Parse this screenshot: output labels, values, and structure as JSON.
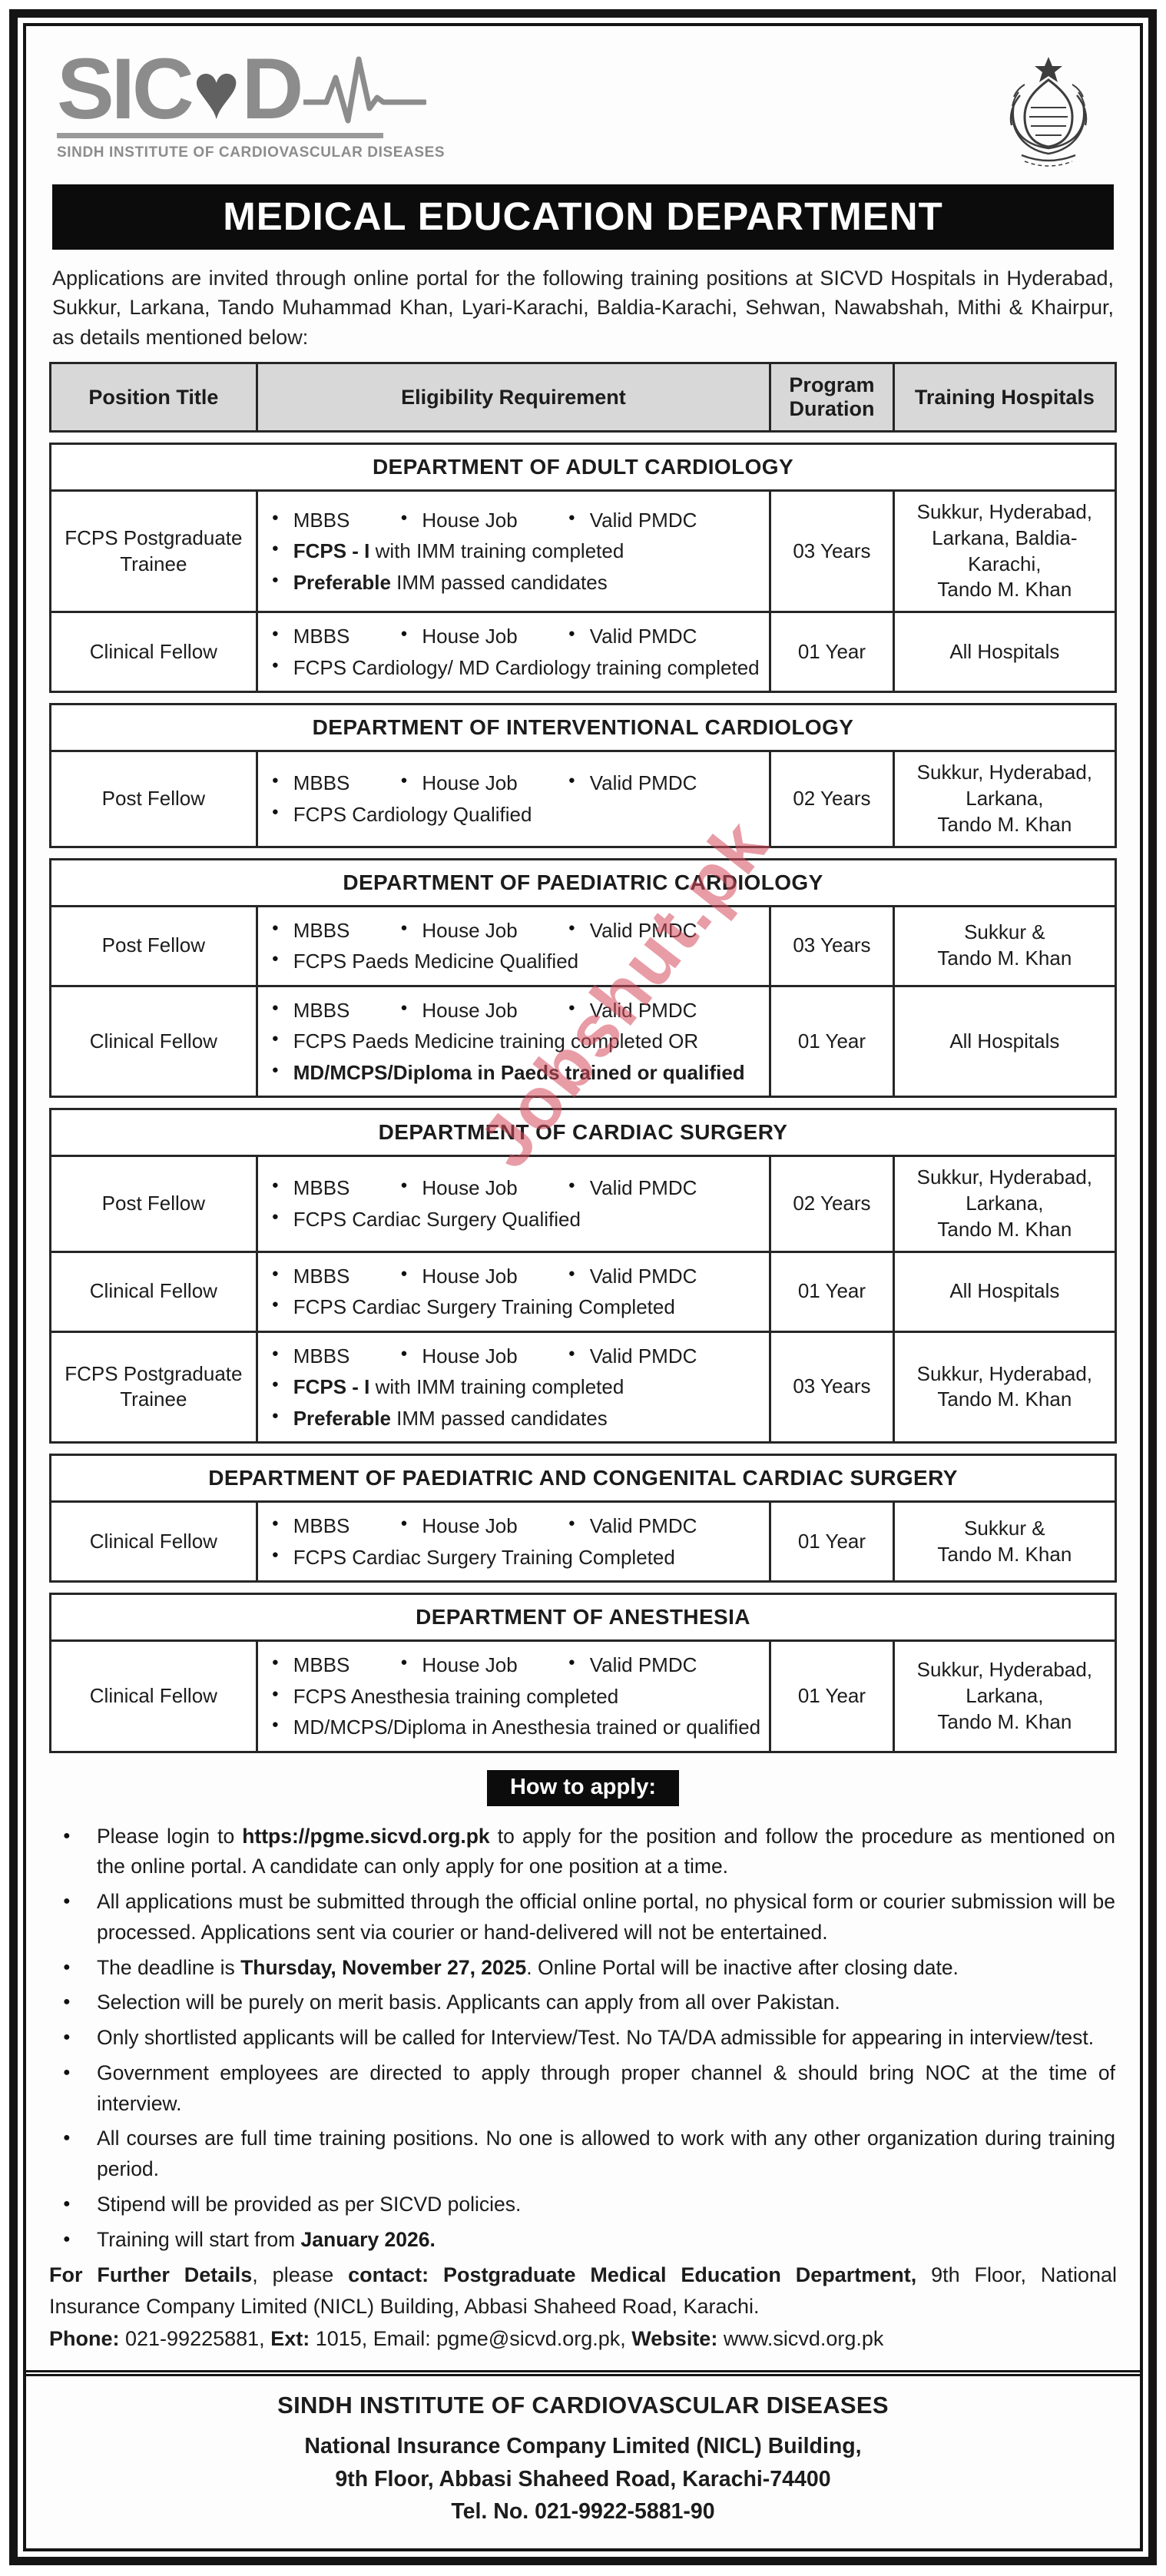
{
  "colors": {
    "banner_bg": "#0c0c0c",
    "table_header_bg": "#d8d8d8",
    "logo_gray": "#8c8c8c",
    "watermark_red": "#d64a5c"
  },
  "logo": {
    "brand_pre": "SIC",
    "brand_post": "D",
    "heart": "♥",
    "tagline": "SINDH INSTITUTE OF CARDIOVASCULAR DISEASES"
  },
  "banner": {
    "title": "MEDICAL EDUCATION DEPARTMENT"
  },
  "intro": "Applications are invited through online portal for the following training positions at SICVD Hospitals in Hyderabad, Sukkur, Larkana, Tando Muhammad Khan, Lyari-Karachi, Baldia-Karachi, Sehwan, Nawabshah, Mithi & Khairpur, as details mentioned below:",
  "table": {
    "headers": [
      "Position Title",
      "Eligibility Requirement",
      "Program Duration",
      "Training Hospitals"
    ],
    "sections": [
      {
        "title": "DEPARTMENT OF ADULT CARDIOLOGY",
        "rows": [
          {
            "position": "FCPS Postgraduate Trainee",
            "eligibility": [
              [
                [
                  {
                    "t": "MBBS"
                  }
                ],
                [
                  {
                    "t": "House Job"
                  }
                ],
                [
                  {
                    "t": "Valid PMDC"
                  }
                ]
              ],
              [
                [
                  {
                    "t": "FCPS - I ",
                    "b": true
                  },
                  {
                    "t": "with IMM training completed"
                  }
                ]
              ],
              [
                [
                  {
                    "t": "Preferable ",
                    "b": true
                  },
                  {
                    "t": "IMM passed candidates"
                  }
                ]
              ]
            ],
            "duration": "03 Years",
            "hospitals": "Sukkur, Hyderabad,\nLarkana, Baldia-Karachi,\nTando M. Khan"
          },
          {
            "position": "Clinical Fellow",
            "eligibility": [
              [
                [
                  {
                    "t": "MBBS"
                  }
                ],
                [
                  {
                    "t": "House Job"
                  }
                ],
                [
                  {
                    "t": "Valid PMDC"
                  }
                ]
              ],
              [
                [
                  {
                    "t": "FCPS Cardiology/ MD Cardiology training completed"
                  }
                ]
              ]
            ],
            "duration": "01 Year",
            "hospitals": "All Hospitals"
          }
        ]
      },
      {
        "title": "DEPARTMENT OF INTERVENTIONAL CARDIOLOGY",
        "rows": [
          {
            "position": "Post Fellow",
            "eligibility": [
              [
                [
                  {
                    "t": "MBBS"
                  }
                ],
                [
                  {
                    "t": "House Job"
                  }
                ],
                [
                  {
                    "t": "Valid PMDC"
                  }
                ]
              ],
              [
                [
                  {
                    "t": "FCPS Cardiology Qualified"
                  }
                ]
              ]
            ],
            "duration": "02 Years",
            "hospitals": "Sukkur, Hyderabad,\nLarkana,\nTando M. Khan"
          }
        ]
      },
      {
        "title": "DEPARTMENT OF PAEDIATRIC CARDIOLOGY",
        "rows": [
          {
            "position": "Post Fellow",
            "eligibility": [
              [
                [
                  {
                    "t": "MBBS"
                  }
                ],
                [
                  {
                    "t": "House Job"
                  }
                ],
                [
                  {
                    "t": "Valid PMDC"
                  }
                ]
              ],
              [
                [
                  {
                    "t": "FCPS Paeds Medicine Qualified"
                  }
                ]
              ]
            ],
            "duration": "03 Years",
            "hospitals": "Sukkur &\nTando M. Khan"
          },
          {
            "position": "Clinical Fellow",
            "eligibility": [
              [
                [
                  {
                    "t": "MBBS"
                  }
                ],
                [
                  {
                    "t": "House Job"
                  }
                ],
                [
                  {
                    "t": "Valid PMDC"
                  }
                ]
              ],
              [
                [
                  {
                    "t": "FCPS Paeds Medicine training completed OR"
                  }
                ]
              ],
              [
                [
                  {
                    "t": "MD/MCPS/Diploma in Paeds trained or qualified",
                    "b": true
                  }
                ]
              ]
            ],
            "duration": "01 Year",
            "hospitals": "All Hospitals"
          }
        ]
      },
      {
        "title": "DEPARTMENT OF CARDIAC SURGERY",
        "rows": [
          {
            "position": "Post Fellow",
            "eligibility": [
              [
                [
                  {
                    "t": "MBBS"
                  }
                ],
                [
                  {
                    "t": "House Job"
                  }
                ],
                [
                  {
                    "t": "Valid PMDC"
                  }
                ]
              ],
              [
                [
                  {
                    "t": "FCPS Cardiac Surgery Qualified"
                  }
                ]
              ]
            ],
            "duration": "02 Years",
            "hospitals": "Sukkur, Hyderabad,\nLarkana,\nTando M. Khan"
          },
          {
            "position": "Clinical Fellow",
            "eligibility": [
              [
                [
                  {
                    "t": "MBBS"
                  }
                ],
                [
                  {
                    "t": "House Job"
                  }
                ],
                [
                  {
                    "t": "Valid PMDC"
                  }
                ]
              ],
              [
                [
                  {
                    "t": "FCPS Cardiac Surgery Training Completed"
                  }
                ]
              ]
            ],
            "duration": "01 Year",
            "hospitals": "All Hospitals"
          },
          {
            "position": "FCPS Postgraduate Trainee",
            "eligibility": [
              [
                [
                  {
                    "t": "MBBS"
                  }
                ],
                [
                  {
                    "t": "House Job"
                  }
                ],
                [
                  {
                    "t": "Valid PMDC"
                  }
                ]
              ],
              [
                [
                  {
                    "t": "FCPS - I ",
                    "b": true
                  },
                  {
                    "t": "with IMM training completed"
                  }
                ]
              ],
              [
                [
                  {
                    "t": "Preferable ",
                    "b": true
                  },
                  {
                    "t": "IMM passed candidates"
                  }
                ]
              ]
            ],
            "duration": "03 Years",
            "hospitals": "Sukkur, Hyderabad,\nTando M. Khan"
          }
        ]
      },
      {
        "title": "DEPARTMENT OF PAEDIATRIC AND CONGENITAL CARDIAC SURGERY",
        "rows": [
          {
            "position": "Clinical Fellow",
            "eligibility": [
              [
                [
                  {
                    "t": "MBBS"
                  }
                ],
                [
                  {
                    "t": "House Job"
                  }
                ],
                [
                  {
                    "t": "Valid PMDC"
                  }
                ]
              ],
              [
                [
                  {
                    "t": "FCPS Cardiac Surgery Training Completed"
                  }
                ]
              ]
            ],
            "duration": "01 Year",
            "hospitals": "Sukkur &\nTando M. Khan"
          }
        ]
      },
      {
        "title": "DEPARTMENT OF ANESTHESIA",
        "rows": [
          {
            "position": "Clinical Fellow",
            "eligibility": [
              [
                [
                  {
                    "t": "MBBS"
                  }
                ],
                [
                  {
                    "t": "House Job"
                  }
                ],
                [
                  {
                    "t": "Valid PMDC"
                  }
                ]
              ],
              [
                [
                  {
                    "t": "FCPS Anesthesia training completed"
                  }
                ]
              ],
              [
                [
                  {
                    "t": "MD/MCPS/Diploma in Anesthesia trained or qualified"
                  }
                ]
              ]
            ],
            "duration": "01 Year",
            "hospitals": "Sukkur, Hyderabad,\nLarkana,\nTando M. Khan"
          }
        ]
      }
    ]
  },
  "how_to_apply": {
    "label": "How to apply:",
    "bullets": [
      [
        {
          "t": "Please login to "
        },
        {
          "t": "https://pgme.sicvd.org.pk",
          "b": true
        },
        {
          "t": " to apply for the position and follow the procedure as mentioned on the online portal. A candidate can only apply for one position at a time."
        }
      ],
      [
        {
          "t": "All applications must be submitted through the official online portal, no physical form or courier submission will be processed. Applications sent via courier or hand-delivered will not be entertained."
        }
      ],
      [
        {
          "t": "The deadline is "
        },
        {
          "t": "Thursday, November 27, 2025",
          "b": true
        },
        {
          "t": ". Online Portal will be inactive after closing date."
        }
      ],
      [
        {
          "t": "Selection will be purely on merit basis. Applicants can apply from all over Pakistan."
        }
      ],
      [
        {
          "t": "Only shortlisted applicants will be called for Interview/Test. No TA/DA admissible for appearing in interview/test."
        }
      ],
      [
        {
          "t": "Government employees are directed to apply through proper channel & should bring NOC at the time of interview."
        }
      ],
      [
        {
          "t": "All courses are full time training positions. No one is allowed to work with any other organization during training period."
        }
      ],
      [
        {
          "t": "Stipend will be provided as per SICVD policies."
        }
      ],
      [
        {
          "t": "Training will start from "
        },
        {
          "t": "January 2026.",
          "b": true
        }
      ]
    ]
  },
  "further_details": [
    {
      "t": "For Further Details",
      "b": true
    },
    {
      "t": ", please "
    },
    {
      "t": "contact: Postgraduate Medical Education Department,",
      "b": true
    },
    {
      "t": " 9th Floor, National Insurance Company Limited (NICL) Building, Abbasi Shaheed Road, Karachi."
    }
  ],
  "contact_line": [
    {
      "t": "Phone:",
      "b": true
    },
    {
      "t": " 021-99225881, "
    },
    {
      "t": "Ext:",
      "b": true
    },
    {
      "t": " 1015, Email: pgme@sicvd.org.pk, "
    },
    {
      "t": "Website:",
      "b": true
    },
    {
      "t": " www.sicvd.org.pk"
    }
  ],
  "footer": {
    "title": "SINDH INSTITUTE OF CARDIOVASCULAR DISEASES",
    "line1": "National Insurance Company Limited (NICL) Building,",
    "line2": "9th Floor, Abbasi Shaheed Road, Karachi-74400",
    "line3": "Tel. No. 021-9922-5881-90"
  },
  "watermark": "Jobshut.pk"
}
